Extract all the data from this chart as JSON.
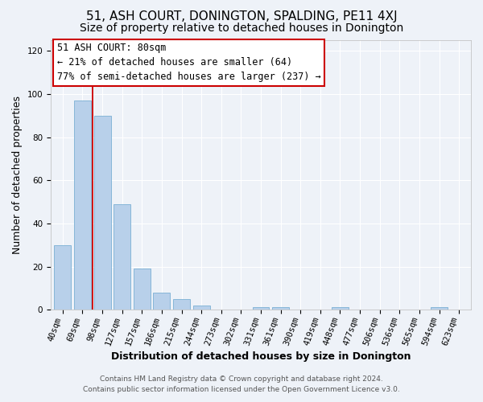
{
  "title": "51, ASH COURT, DONINGTON, SPALDING, PE11 4XJ",
  "subtitle": "Size of property relative to detached houses in Donington",
  "xlabel": "Distribution of detached houses by size in Donington",
  "ylabel": "Number of detached properties",
  "bar_labels": [
    "40sqm",
    "69sqm",
    "98sqm",
    "127sqm",
    "157sqm",
    "186sqm",
    "215sqm",
    "244sqm",
    "273sqm",
    "302sqm",
    "331sqm",
    "361sqm",
    "390sqm",
    "419sqm",
    "448sqm",
    "477sqm",
    "506sqm",
    "536sqm",
    "565sqm",
    "594sqm",
    "623sqm"
  ],
  "bar_values": [
    30,
    97,
    90,
    49,
    19,
    8,
    5,
    2,
    0,
    0,
    1,
    1,
    0,
    0,
    1,
    0,
    0,
    0,
    0,
    1,
    0
  ],
  "bar_color": "#b8d0ea",
  "bar_edgecolor": "#7aafd4",
  "vline_x": 1.5,
  "vline_color": "#cc0000",
  "annotation_title": "51 ASH COURT: 80sqm",
  "annotation_line1": "← 21% of detached houses are smaller (64)",
  "annotation_line2": "77% of semi-detached houses are larger (237) →",
  "annotation_box_edgecolor": "#cc0000",
  "ylim": [
    0,
    125
  ],
  "yticks": [
    0,
    20,
    40,
    60,
    80,
    100,
    120
  ],
  "footer1": "Contains HM Land Registry data © Crown copyright and database right 2024.",
  "footer2": "Contains public sector information licensed under the Open Government Licence v3.0.",
  "background_color": "#eef2f8",
  "plot_bg_color": "#eef2f8",
  "grid_color": "#ffffff",
  "title_fontsize": 11,
  "subtitle_fontsize": 10,
  "axis_label_fontsize": 9,
  "tick_fontsize": 7.5,
  "annotation_fontsize": 8.5,
  "footer_fontsize": 6.5
}
